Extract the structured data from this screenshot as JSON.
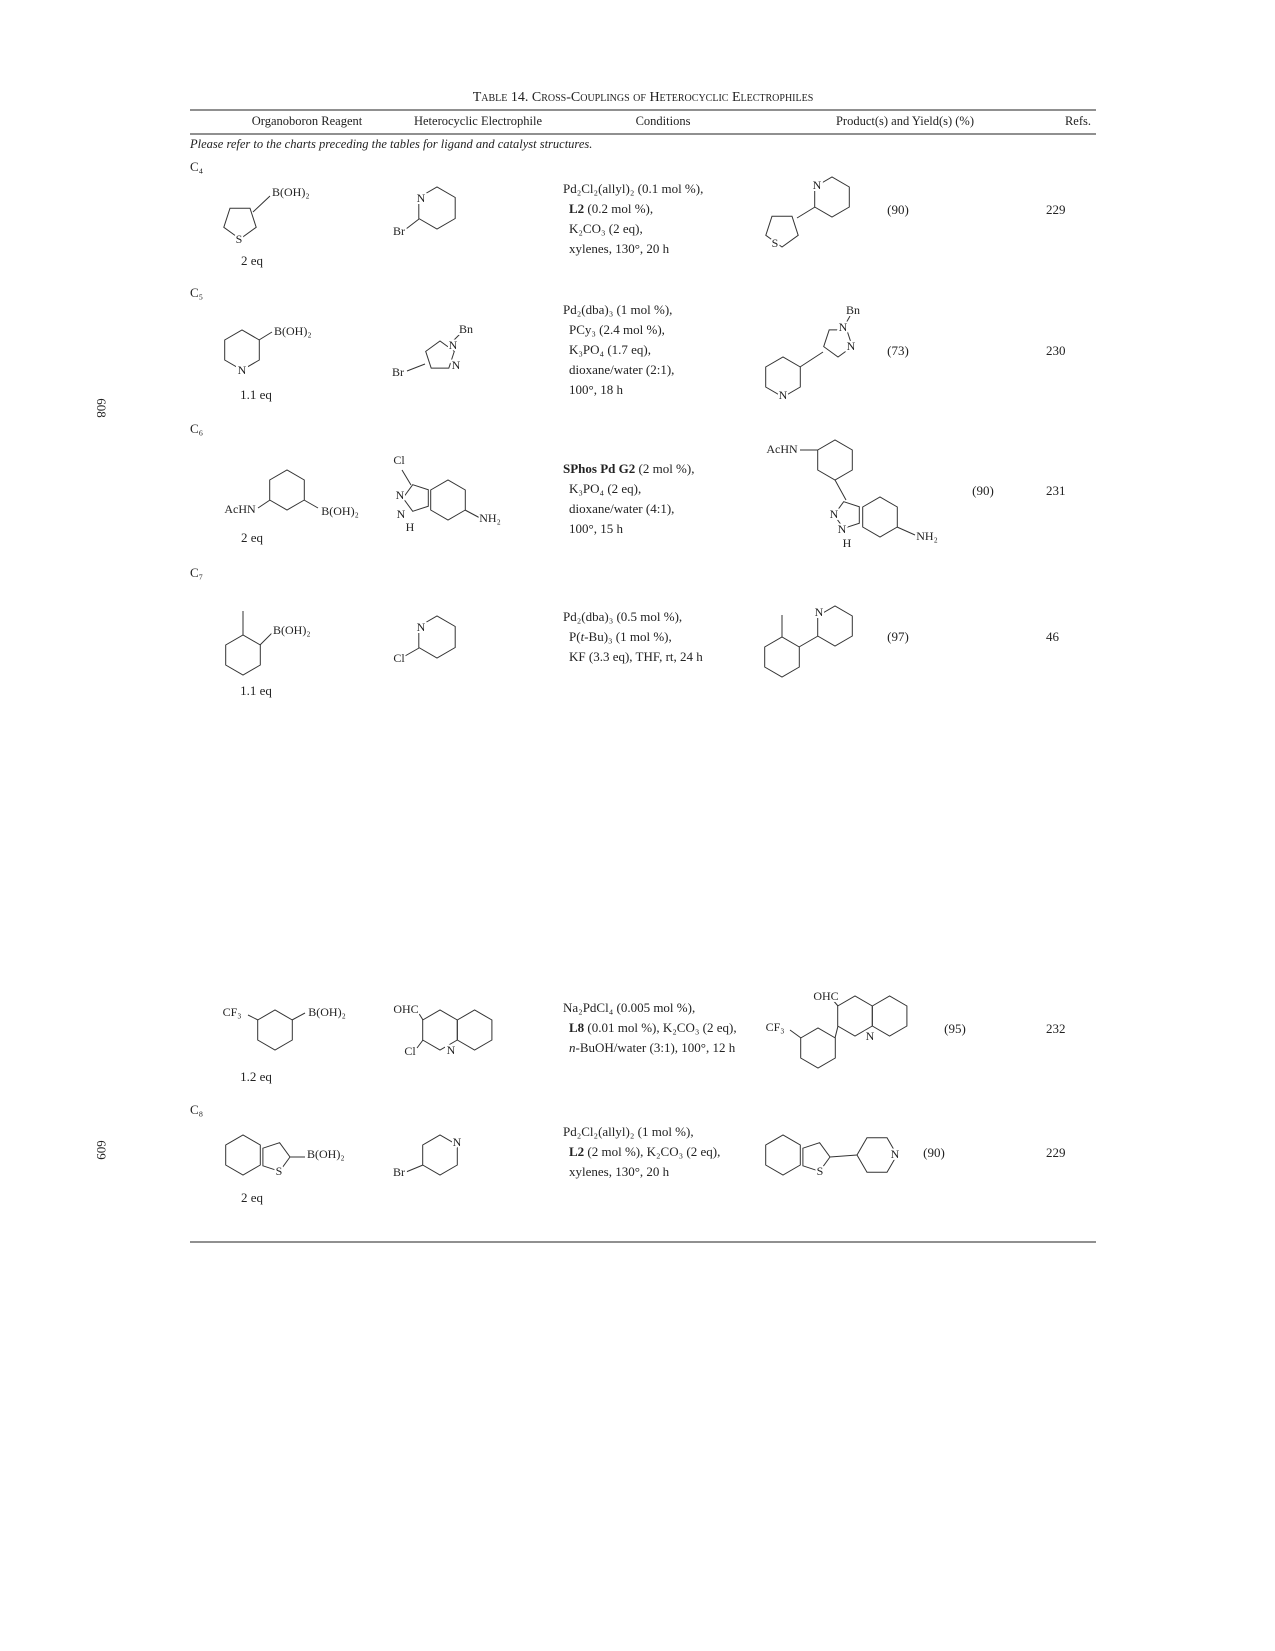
{
  "page_numbers": [
    "608",
    "609"
  ],
  "table": {
    "title": "Table 14. Cross-Couplings of Heterocyclic Electrophiles",
    "headers": [
      "Organoboron Reagent",
      "Heterocyclic Electrophile",
      "Conditions",
      "Product(s) and Yield(s) (%)",
      "Refs."
    ],
    "note": "Please refer to the charts preceding the tables for ligand and catalyst structures.",
    "groups": [
      {
        "label": "C₄",
        "rows": [
          {
            "reagent": {
              "labels": [
                "B(OH)₂",
                "S"
              ],
              "amount": "2 eq"
            },
            "electrophile": {
              "labels": [
                "N",
                "Br"
              ]
            },
            "conditions": [
              [
                "Pd₂Cl₂(allyl)₂ (0.1 mol %),"
              ],
              [
                {
                  "text": "L2",
                  "bold": true
                },
                " (0.2 mol %),"
              ],
              [
                "K₂CO₃ (2 eq),"
              ],
              [
                "xylenes, 130°, 20 h"
              ]
            ],
            "product": {
              "labels": [
                "N",
                "S"
              ]
            },
            "yield": "(90)",
            "refs": "229"
          }
        ]
      },
      {
        "label": "C₅",
        "rows": [
          {
            "reagent": {
              "labels": [
                "B(OH)₂",
                "N"
              ],
              "amount": "1.1 eq"
            },
            "electrophile": {
              "labels": [
                "Bn",
                "N",
                "N",
                "Br"
              ]
            },
            "conditions": [
              [
                "Pd₂(dba)₃ (1 mol %),"
              ],
              [
                "PCy₃ (2.4 mol %),"
              ],
              [
                "K₃PO₄ (1.7 eq),"
              ],
              [
                "dioxane/water (2:1),"
              ],
              [
                "100°, 18 h"
              ]
            ],
            "product": {
              "labels": [
                "Bn",
                "N",
                "N",
                "N"
              ]
            },
            "yield": "(73)",
            "refs": "230"
          }
        ]
      },
      {
        "label": "C₆",
        "rows": [
          {
            "reagent": {
              "labels": [
                "AcHN",
                "B(OH)₂"
              ],
              "amount": "2 eq"
            },
            "electrophile": {
              "labels": [
                "Cl",
                "N",
                "N",
                "H",
                "NH₂"
              ]
            },
            "conditions": [
              [
                {
                  "text": "SPhos Pd G2",
                  "bold": true
                },
                " (2 mol %),"
              ],
              [
                "K₃PO₄ (2 eq),"
              ],
              [
                "dioxane/water (4:1),"
              ],
              [
                "100°, 15 h"
              ]
            ],
            "product": {
              "labels": [
                "AcHN",
                "N",
                "N",
                "H",
                "NH₂"
              ]
            },
            "yield": "(90)",
            "refs": "231"
          }
        ]
      },
      {
        "label": "C₇",
        "rows": [
          {
            "reagent": {
              "labels": [
                "B(OH)₂"
              ],
              "amount": "1.1 eq"
            },
            "electrophile": {
              "labels": [
                "N",
                "Cl"
              ]
            },
            "conditions": [
              [
                "Pd₂(dba)₃ (0.5 mol %),"
              ],
              [
                "P(",
                {
                  "text": "t",
                  "italic": true
                },
                "-Bu)₃ (1 mol %),"
              ],
              [
                "KF (3.3 eq), THF, rt, 24 h"
              ]
            ],
            "product": {
              "labels": [
                "N"
              ]
            },
            "yield": "(97)",
            "refs": "46"
          },
          {
            "reagent": {
              "labels": [
                "CF₃",
                "B(OH)₂"
              ],
              "amount": "1.2 eq"
            },
            "electrophile": {
              "labels": [
                "OHC",
                "Cl",
                "N"
              ]
            },
            "conditions": [
              [
                "Na₂PdCl₄ (0.005 mol %),"
              ],
              [
                {
                  "text": "L8",
                  "bold": true
                },
                " (0.01 mol %), K₂CO₃ (2 eq),"
              ],
              [
                {
                  "text": "n",
                  "italic": true
                },
                "-BuOH/water (3:1), 100°, 12 h"
              ]
            ],
            "product": {
              "labels": [
                "OHC",
                "CF₃",
                "N"
              ]
            },
            "yield": "(95)",
            "refs": "232"
          }
        ]
      },
      {
        "label": "C₈",
        "rows": [
          {
            "reagent": {
              "labels": [
                "B(OH)₂",
                "S"
              ],
              "amount": "2 eq"
            },
            "electrophile": {
              "labels": [
                "N",
                "Br"
              ]
            },
            "conditions": [
              [
                "Pd₂Cl₂(allyl)₂ (1 mol %),"
              ],
              [
                {
                  "text": "L2",
                  "bold": true
                },
                " (2 mol %), K₂CO₃ (2 eq),"
              ],
              [
                "xylenes, 130°, 20 h"
              ]
            ],
            "product": {
              "labels": [
                "S",
                "N"
              ]
            },
            "yield": "(90)",
            "refs": "229"
          }
        ]
      }
    ]
  }
}
